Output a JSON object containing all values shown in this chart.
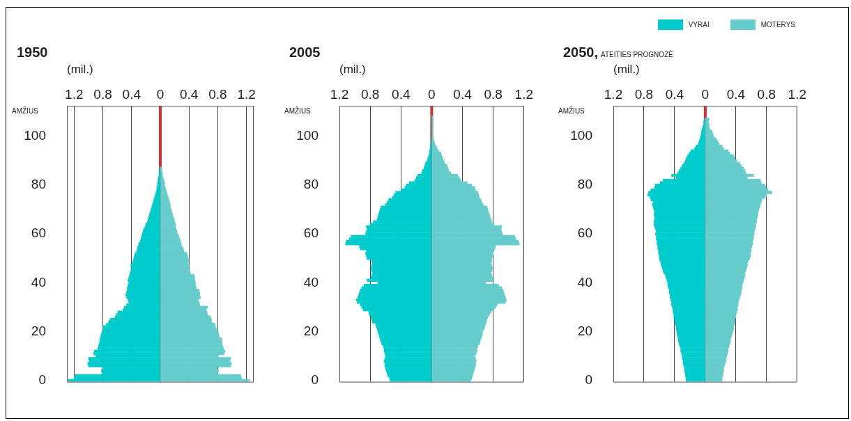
{
  "chart_data": [
    {
      "type": "bar",
      "title": "1950",
      "xlabel": "(mil.)",
      "ylabel": "AMŽIUS",
      "orientation": "horizontal",
      "stacked": true,
      "grid": "x",
      "xlim": [
        -1.3,
        1.3
      ],
      "xticks": [
        {
          "value": -1.2,
          "label": "1.2"
        },
        {
          "value": -0.8,
          "label": "0.8"
        },
        {
          "value": -0.4,
          "label": "0.4"
        },
        0,
        0.4,
        0.8,
        1.2
      ],
      "ylim": [
        -0.5,
        112.5
      ],
      "yticks": [
        0,
        20,
        40,
        60,
        80,
        100
      ],
      "ref_lines": [
        {
          "axis": "x",
          "value": 0,
          "color": "#cc3333"
        }
      ],
      "x": [
        0,
        1,
        2,
        3,
        4,
        5,
        6,
        7,
        8,
        9,
        10,
        11,
        12,
        13,
        14,
        15,
        16,
        17,
        18,
        19,
        20,
        21,
        22,
        23,
        24,
        25,
        26,
        27,
        28,
        29,
        30,
        31,
        32,
        33,
        34,
        35,
        36,
        37,
        38,
        39,
        40,
        41,
        42,
        43,
        44,
        45,
        46,
        47,
        48,
        49,
        50,
        51,
        52,
        53,
        54,
        55,
        56,
        57,
        58,
        59,
        60,
        61,
        62,
        63,
        64,
        65,
        66,
        67,
        68,
        69,
        70,
        71,
        72,
        73,
        74,
        75,
        76,
        77,
        78,
        79,
        80,
        81,
        82,
        83,
        84,
        85,
        86,
        87
      ],
      "series": [
        {
          "color": "#00cccc",
          "values": [
            -1.28,
            -1.2,
            -1.18,
            -0.81,
            -0.82,
            -0.8,
            -1.0,
            -1.01,
            -0.99,
            -1.0,
            -0.9,
            -0.93,
            -0.92,
            -0.87,
            -0.86,
            -0.85,
            -0.84,
            -0.84,
            -0.83,
            -0.82,
            -0.81,
            -0.8,
            -0.8,
            -0.75,
            -0.72,
            -0.7,
            -0.63,
            -0.61,
            -0.59,
            -0.52,
            -0.5,
            -0.47,
            -0.44,
            -0.45,
            -0.47,
            -0.48,
            -0.47,
            -0.46,
            -0.46,
            -0.45,
            -0.44,
            -0.45,
            -0.44,
            -0.43,
            -0.42,
            -0.41,
            -0.4,
            -0.41,
            -0.39,
            -0.38,
            -0.37,
            -0.36,
            -0.35,
            -0.33,
            -0.32,
            -0.31,
            -0.3,
            -0.28,
            -0.27,
            -0.26,
            -0.25,
            -0.24,
            -0.23,
            -0.21,
            -0.2,
            -0.18,
            -0.17,
            -0.16,
            -0.15,
            -0.14,
            -0.13,
            -0.12,
            -0.11,
            -0.1,
            -0.09,
            -0.08,
            -0.07,
            -0.06,
            -0.05,
            -0.05,
            -0.04,
            -0.04,
            -0.03,
            -0.03,
            -0.02,
            -0.02,
            -0.01,
            -0.01
          ]
        },
        {
          "color": "#66cccc",
          "values": [
            1.24,
            1.13,
            1.12,
            0.8,
            0.81,
            0.79,
            0.98,
            0.99,
            0.97,
            0.98,
            0.81,
            0.89,
            0.9,
            0.88,
            0.87,
            0.86,
            0.86,
            0.85,
            0.82,
            0.81,
            0.8,
            0.78,
            0.77,
            0.76,
            0.72,
            0.71,
            0.7,
            0.66,
            0.65,
            0.64,
            0.66,
            0.55,
            0.54,
            0.53,
            0.56,
            0.55,
            0.55,
            0.54,
            0.5,
            0.49,
            0.49,
            0.48,
            0.48,
            0.47,
            0.42,
            0.41,
            0.4,
            0.4,
            0.39,
            0.4,
            0.39,
            0.38,
            0.37,
            0.33,
            0.32,
            0.3,
            0.29,
            0.28,
            0.27,
            0.26,
            0.24,
            0.23,
            0.22,
            0.21,
            0.21,
            0.2,
            0.19,
            0.18,
            0.17,
            0.16,
            0.15,
            0.14,
            0.14,
            0.13,
            0.12,
            0.11,
            0.1,
            0.09,
            0.08,
            0.07,
            0.06,
            0.06,
            0.05,
            0.04,
            0.03,
            0.03,
            0.02,
            0.02
          ]
        }
      ]
    },
    {
      "type": "bar",
      "title": "2005",
      "xlabel": "(mil.)",
      "ylabel": "AMŽIUS",
      "orientation": "horizontal",
      "stacked": true,
      "grid": "x",
      "xlim": [
        -1.2,
        1.2
      ],
      "xticks": [
        {
          "value": -1.2,
          "label": "1.2"
        },
        {
          "value": -0.8,
          "label": "0.8"
        },
        {
          "value": -0.4,
          "label": "0.4"
        },
        0,
        0.4,
        0.8,
        1.2
      ],
      "ylim": [
        -0.5,
        112.5
      ],
      "yticks": [
        0,
        20,
        40,
        60,
        80,
        100
      ],
      "ref_lines": [
        {
          "axis": "x",
          "value": 0,
          "color": "#cc3333"
        }
      ],
      "x": [
        0,
        1,
        2,
        3,
        4,
        5,
        6,
        7,
        8,
        9,
        10,
        11,
        12,
        13,
        14,
        15,
        16,
        17,
        18,
        19,
        20,
        21,
        22,
        23,
        24,
        25,
        26,
        27,
        28,
        29,
        30,
        31,
        32,
        33,
        34,
        35,
        36,
        37,
        38,
        39,
        40,
        41,
        42,
        43,
        44,
        45,
        46,
        47,
        48,
        49,
        50,
        51,
        52,
        53,
        54,
        55,
        56,
        57,
        58,
        59,
        60,
        61,
        62,
        63,
        64,
        65,
        66,
        67,
        68,
        69,
        70,
        71,
        72,
        73,
        74,
        75,
        76,
        77,
        78,
        79,
        80,
        81,
        82,
        83,
        84,
        85,
        86,
        87,
        88,
        89,
        90,
        91,
        92,
        93,
        94,
        95,
        96,
        97,
        98,
        99,
        100,
        101,
        102,
        103,
        104,
        105,
        106,
        107,
        108
      ],
      "series": [
        {
          "color": "#00cccc",
          "values": [
            -0.54,
            -0.55,
            -0.57,
            -0.58,
            -0.59,
            -0.6,
            -0.61,
            -0.61,
            -0.62,
            -0.61,
            -0.6,
            -0.61,
            -0.62,
            -0.62,
            -0.63,
            -0.65,
            -0.66,
            -0.67,
            -0.68,
            -0.69,
            -0.7,
            -0.71,
            -0.72,
            -0.73,
            -0.77,
            -0.78,
            -0.79,
            -0.81,
            -0.82,
            -0.89,
            -0.91,
            -0.93,
            -0.97,
            -0.98,
            -0.96,
            -0.95,
            -0.94,
            -0.93,
            -0.91,
            -0.88,
            -0.7,
            -0.84,
            -0.79,
            -0.78,
            -0.77,
            -0.78,
            -0.79,
            -0.78,
            -0.77,
            -0.78,
            -0.84,
            -0.85,
            -0.86,
            -0.85,
            -0.93,
            -0.94,
            -1.12,
            -1.11,
            -1.07,
            -1.05,
            -0.86,
            -0.85,
            -0.84,
            -0.85,
            -0.8,
            -0.76,
            -0.71,
            -0.7,
            -0.69,
            -0.68,
            -0.67,
            -0.66,
            -0.6,
            -0.58,
            -0.56,
            -0.51,
            -0.49,
            -0.47,
            -0.4,
            -0.35,
            -0.33,
            -0.29,
            -0.22,
            -0.2,
            -0.18,
            -0.13,
            -0.12,
            -0.1,
            -0.09,
            -0.08,
            -0.06,
            -0.05,
            -0.04,
            -0.03,
            -0.03,
            -0.02,
            -0.02,
            -0.01,
            -0.01,
            0,
            0,
            0,
            0,
            0,
            0,
            0,
            0,
            0,
            0
          ]
        },
        {
          "color": "#66cccc",
          "values": [
            0.51,
            0.52,
            0.53,
            0.54,
            0.55,
            0.56,
            0.57,
            0.57,
            0.58,
            0.57,
            0.56,
            0.58,
            0.59,
            0.59,
            0.6,
            0.62,
            0.63,
            0.64,
            0.65,
            0.66,
            0.66,
            0.68,
            0.69,
            0.7,
            0.71,
            0.72,
            0.73,
            0.75,
            0.77,
            0.81,
            0.83,
            0.85,
            0.96,
            0.97,
            0.96,
            0.95,
            0.94,
            0.93,
            0.91,
            0.87,
            0.7,
            0.81,
            0.79,
            0.78,
            0.77,
            0.78,
            0.79,
            0.78,
            0.77,
            0.78,
            0.78,
            0.79,
            0.8,
            0.79,
            0.82,
            0.83,
            1.14,
            1.13,
            1.09,
            1.08,
            0.92,
            0.91,
            0.9,
            0.91,
            0.81,
            0.78,
            0.77,
            0.76,
            0.75,
            0.74,
            0.73,
            0.72,
            0.67,
            0.65,
            0.64,
            0.62,
            0.61,
            0.6,
            0.57,
            0.56,
            0.52,
            0.46,
            0.38,
            0.36,
            0.34,
            0.25,
            0.22,
            0.21,
            0.2,
            0.17,
            0.16,
            0.14,
            0.13,
            0.12,
            0.09,
            0.07,
            0.06,
            0.04,
            0.03,
            0.02,
            0.02,
            0.01,
            0.02,
            0.01,
            0.02,
            0.01,
            0.02,
            0.01,
            0.02
          ]
        }
      ]
    },
    {
      "type": "bar",
      "title": "2050,",
      "subtitle": "ATEITIES PROGNOZĖ",
      "xlabel": "(mil.)",
      "ylabel": "AMŽIUS",
      "orientation": "horizontal",
      "stacked": true,
      "grid": "x",
      "legend": "top right",
      "xlim": [
        -1.2,
        1.2
      ],
      "xticks": [
        {
          "value": -1.2,
          "label": "1.2"
        },
        {
          "value": -0.8,
          "label": "0.8"
        },
        {
          "value": -0.4,
          "label": "0.4"
        },
        0,
        0.4,
        0.8,
        1.2
      ],
      "ylim": [
        -0.5,
        112.5
      ],
      "yticks": [
        0,
        20,
        40,
        60,
        80,
        100
      ],
      "ref_lines": [
        {
          "axis": "x",
          "value": 0,
          "color": "#cc3333"
        }
      ],
      "x": [
        0,
        1,
        2,
        3,
        4,
        5,
        6,
        7,
        8,
        9,
        10,
        11,
        12,
        13,
        14,
        15,
        16,
        17,
        18,
        19,
        20,
        21,
        22,
        23,
        24,
        25,
        26,
        27,
        28,
        29,
        30,
        31,
        32,
        33,
        34,
        35,
        36,
        37,
        38,
        39,
        40,
        41,
        42,
        43,
        44,
        45,
        46,
        47,
        48,
        49,
        50,
        51,
        52,
        53,
        54,
        55,
        56,
        57,
        58,
        59,
        60,
        61,
        62,
        63,
        64,
        65,
        66,
        67,
        68,
        69,
        70,
        71,
        72,
        73,
        74,
        75,
        76,
        77,
        78,
        79,
        80,
        81,
        82,
        83,
        84,
        85,
        86,
        87,
        88,
        89,
        90,
        91,
        92,
        93,
        94,
        95,
        96,
        97,
        98,
        99,
        100,
        101,
        102,
        103,
        104,
        105,
        106,
        107
      ],
      "series": [
        {
          "name": "VYRAI",
          "color": "#00cccc",
          "values": [
            -0.25,
            -0.25,
            -0.26,
            -0.26,
            -0.27,
            -0.27,
            -0.28,
            -0.29,
            -0.29,
            -0.3,
            -0.3,
            -0.31,
            -0.32,
            -0.32,
            -0.33,
            -0.34,
            -0.35,
            -0.35,
            -0.36,
            -0.37,
            -0.37,
            -0.38,
            -0.38,
            -0.39,
            -0.4,
            -0.4,
            -0.41,
            -0.41,
            -0.42,
            -0.42,
            -0.43,
            -0.44,
            -0.44,
            -0.45,
            -0.46,
            -0.46,
            -0.47,
            -0.47,
            -0.48,
            -0.49,
            -0.49,
            -0.5,
            -0.51,
            -0.52,
            -0.54,
            -0.55,
            -0.56,
            -0.57,
            -0.58,
            -0.59,
            -0.6,
            -0.6,
            -0.61,
            -0.61,
            -0.62,
            -0.62,
            -0.63,
            -0.63,
            -0.64,
            -0.64,
            -0.65,
            -0.64,
            -0.65,
            -0.66,
            -0.67,
            -0.67,
            -0.66,
            -0.66,
            -0.67,
            -0.66,
            -0.67,
            -0.68,
            -0.69,
            -0.68,
            -0.71,
            -0.72,
            -0.75,
            -0.74,
            -0.71,
            -0.66,
            -0.65,
            -0.59,
            -0.55,
            -0.38,
            -0.44,
            -0.36,
            -0.34,
            -0.32,
            -0.3,
            -0.28,
            -0.26,
            -0.25,
            -0.23,
            -0.21,
            -0.19,
            -0.14,
            -0.12,
            -0.09,
            -0.08,
            -0.07,
            -0.06,
            -0.05,
            -0.05,
            -0.04,
            -0.03,
            -0.02,
            -0.02,
            -0.01
          ]
        },
        {
          "name": "MOTERYS",
          "color": "#66cccc",
          "values": [
            0.22,
            0.22,
            0.23,
            0.23,
            0.24,
            0.24,
            0.25,
            0.26,
            0.27,
            0.27,
            0.28,
            0.29,
            0.3,
            0.3,
            0.31,
            0.32,
            0.33,
            0.33,
            0.34,
            0.35,
            0.36,
            0.37,
            0.37,
            0.38,
            0.39,
            0.39,
            0.4,
            0.4,
            0.41,
            0.42,
            0.42,
            0.43,
            0.43,
            0.44,
            0.45,
            0.46,
            0.47,
            0.47,
            0.48,
            0.48,
            0.49,
            0.5,
            0.51,
            0.52,
            0.52,
            0.53,
            0.54,
            0.55,
            0.55,
            0.56,
            0.58,
            0.59,
            0.59,
            0.6,
            0.6,
            0.61,
            0.62,
            0.62,
            0.63,
            0.63,
            0.64,
            0.64,
            0.65,
            0.66,
            0.66,
            0.67,
            0.67,
            0.68,
            0.69,
            0.69,
            0.7,
            0.71,
            0.72,
            0.73,
            0.74,
            0.78,
            0.8,
            0.87,
            0.82,
            0.79,
            0.78,
            0.73,
            0.72,
            0.55,
            0.63,
            0.53,
            0.52,
            0.5,
            0.47,
            0.45,
            0.41,
            0.39,
            0.37,
            0.32,
            0.3,
            0.24,
            0.22,
            0.18,
            0.16,
            0.14,
            0.11,
            0.1,
            0.09,
            0.06,
            0.05,
            0.05,
            0.04,
            0.05
          ]
        }
      ]
    }
  ]
}
